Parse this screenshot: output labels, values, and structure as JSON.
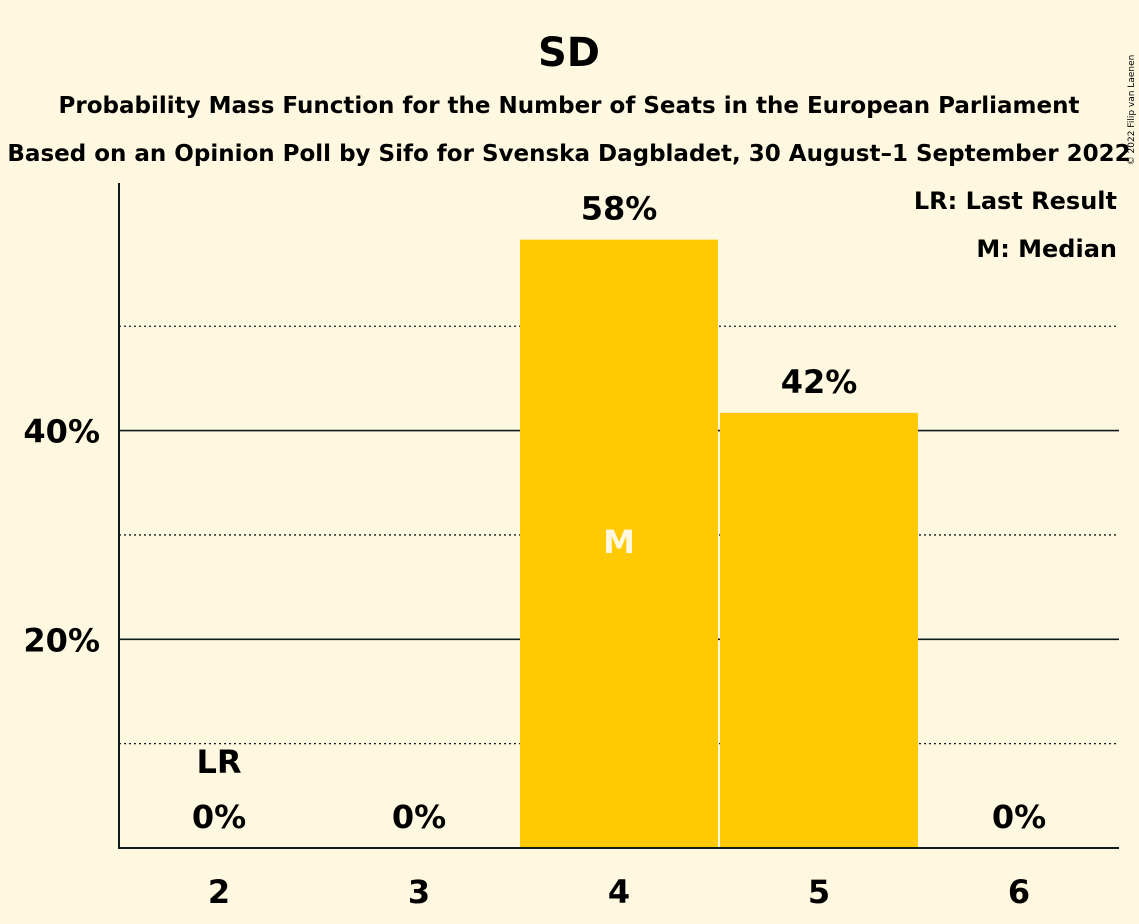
{
  "chart_data": {
    "type": "bar",
    "title": "SD",
    "subtitle_lines": [
      "Probability Mass Function for the Number of Seats in the European Parliament",
      "Based on an Opinion Poll by Sifo for Svenska Dagbladet, 30 August–1 September 2022"
    ],
    "categories": [
      "2",
      "3",
      "4",
      "5",
      "6"
    ],
    "values": [
      0,
      0,
      58.3,
      41.7,
      0
    ],
    "value_labels": [
      "0%",
      "0%",
      "58%",
      "42%",
      "0%"
    ],
    "ylim": [
      0,
      63
    ],
    "yticks": [
      {
        "value": 20,
        "label": "20%"
      },
      {
        "value": 40,
        "label": "40%"
      }
    ],
    "minor_gridlines": [
      10,
      30,
      50
    ],
    "last_result": {
      "category": "2",
      "label": "LR"
    },
    "median": {
      "category": "4",
      "label": "M"
    },
    "legend": [
      "LR: Last Result",
      "M: Median"
    ],
    "legend_position": "top-right",
    "copyright": "© 2022 Filip van Laenen",
    "colors": {
      "background": "#FFF8E1",
      "bar": "#FFC904",
      "text": "#0d1b1e",
      "median_text": "#FFF8E1"
    }
  }
}
